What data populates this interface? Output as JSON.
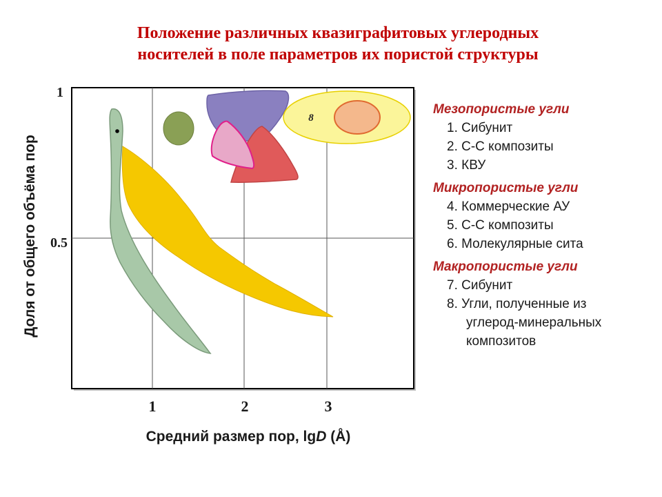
{
  "title": {
    "line1": "Положение различных квазиграфитовых углеродных",
    "line2": "носителей в поле параметров их пористой структуры"
  },
  "axes": {
    "ylabel": "Доля от общего объёма пор",
    "xlabel_prefix": "Средний размер пор, lg",
    "xlabel_var": "D",
    "xlabel_suffix": " (Å)",
    "xticks": [
      "1",
      "2",
      "3"
    ],
    "yticks": [
      "1",
      "0.5"
    ],
    "xlim": [
      0.1,
      3.95
    ],
    "ylim": [
      0,
      1
    ],
    "grid": true
  },
  "region_marker": "8",
  "colors": {
    "title": "#c00000",
    "legend_heading": "#b22222",
    "region_green_band": "#a8c8a8",
    "region_yellow_band": "#f5c800",
    "region_green_blob": "#8aa055",
    "region_purple": "#8a80c0",
    "region_pink": "#e8a8c8",
    "region_red": "#e05a5a",
    "region_yellow_ellipse": "#fbf59a",
    "region_orange": "#f4b88c"
  },
  "legend": {
    "groups": [
      {
        "title": "Мезопористые угли",
        "items": [
          "1. Сибунит",
          "2. С-С композиты",
          "3. КВУ"
        ]
      },
      {
        "title": "Микропористые угли",
        "items": [
          "4. Коммерческие АУ",
          "5. С-С композиты",
          "6. Молекулярные сита"
        ]
      },
      {
        "title": "Макропористые угли",
        "items": [
          "7. Сибунит",
          "8. Угли, полученные из",
          "углерод-минеральных",
          "композитов"
        ]
      }
    ]
  }
}
